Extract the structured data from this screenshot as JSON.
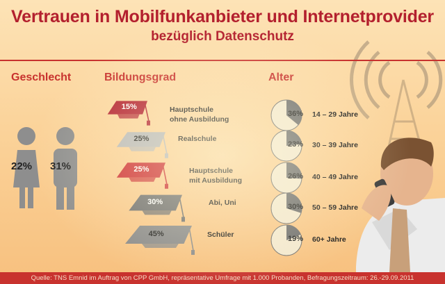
{
  "title": "Vertrauen in Mobilfunkanbieter und Internetprovider",
  "subtitle": "bezüglich Datenschutz",
  "sections": {
    "gender": "Geschlecht",
    "education": "Bildungsgrad",
    "age": "Alter"
  },
  "footer": "Quelle: TNS Emnid im Auftrag von CPP GmbH, repräsentative Umfrage mit 1.000 Probanden, Befragungszeitraum: 26.-29.09.2011",
  "colors": {
    "title": "#b3202e",
    "accent": "#c8322e",
    "grey_dark": "#6e6e6e",
    "grey_light": "#b8b8b8",
    "pie_fill": "#f3e8cf"
  },
  "chart_data": [
    {
      "type": "bar",
      "title": "Geschlecht",
      "categories": [
        "Frauen",
        "Männer"
      ],
      "values": [
        22,
        31
      ],
      "value_labels": [
        "22%",
        "31%"
      ],
      "icons": [
        "woman-icon",
        "man-icon"
      ]
    },
    {
      "type": "bar",
      "title": "Bildungsgrad",
      "categories": [
        "Hauptschule ohne Ausbildung",
        "Realschule",
        "Hauptschule mit Ausbildung",
        "Abi, Uni",
        "Schüler"
      ],
      "label_lines": [
        [
          "Hauptschule",
          "ohne Ausbildung"
        ],
        [
          "Realschule"
        ],
        [
          "Hauptschule",
          "mit Ausbildung"
        ],
        [
          "Abi, Uni"
        ],
        [
          "Schüler"
        ]
      ],
      "values": [
        15,
        25,
        25,
        30,
        45
      ],
      "value_labels": [
        "15%",
        "25%",
        "25%",
        "30%",
        "45%"
      ],
      "mark_colors": [
        "#b3202e",
        "#b8b8b8",
        "#cc2a2e",
        "#6e6e6e",
        "#8a8a8a"
      ],
      "icon": "graduation-cap-icon"
    },
    {
      "type": "pie",
      "title": "Alter",
      "categories": [
        "14 – 29 Jahre",
        "30 – 39 Jahre",
        "40 – 49 Jahre",
        "50 – 59 Jahre",
        "60+ Jahre"
      ],
      "values": [
        36,
        23,
        26,
        30,
        19
      ],
      "value_labels": [
        "36%",
        "23%",
        "26%",
        "30%",
        "19%"
      ],
      "slice_color": "#6e6e6e",
      "rest_color": "#f3e8cf"
    }
  ]
}
